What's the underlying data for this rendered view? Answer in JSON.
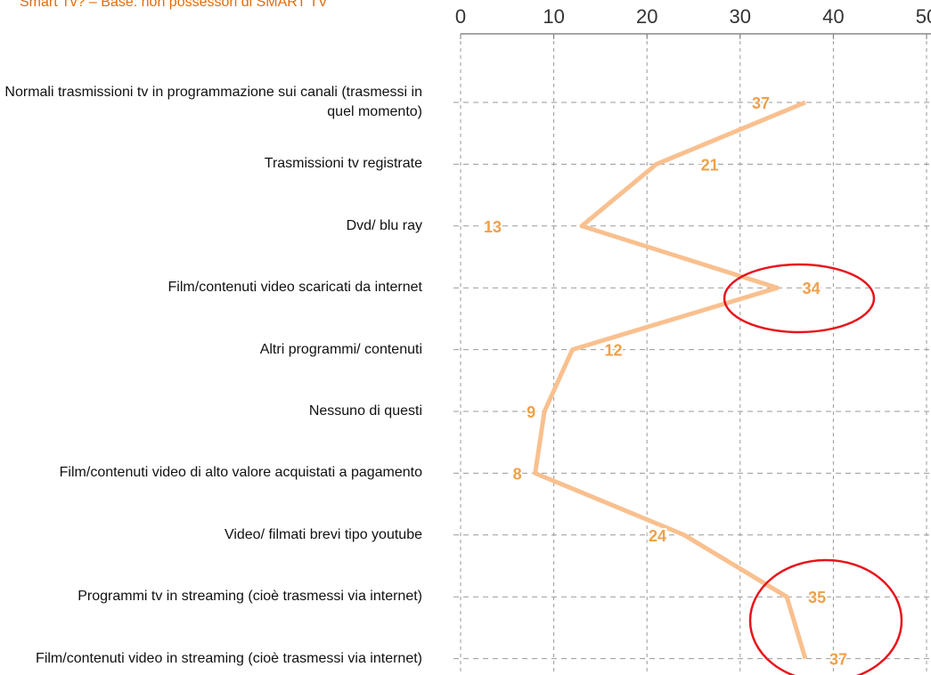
{
  "chart_data": {
    "type": "line",
    "orientation": "horizontal",
    "title": "Smart Tv? – Base: non possessori di SMART TV",
    "categories": [
      "Normali trasmissioni tv in programmazione sui canali (trasmessi in quel momento)",
      "Trasmissioni tv registrate",
      "Dvd/ blu ray",
      "Film/contenuti video scaricati da internet",
      "Altri programmi/ contenuti",
      "Nessuno di questi",
      "Film/contenuti video di alto valore acquistati a pagamento",
      "Video/ filmati brevi tipo youtube",
      "Programmi tv in streaming (cioè trasmessi via internet)",
      "Film/contenuti video in streaming (cioè trasmessi via internet)"
    ],
    "values": [
      37,
      21,
      13,
      34,
      12,
      9,
      8,
      24,
      35,
      37
    ],
    "color": "#f9c08f",
    "label_color": "#f0a04b",
    "xlim": [
      0,
      50
    ],
    "xticks": [
      0,
      10,
      20,
      30,
      40,
      50
    ],
    "grid": true
  }
}
